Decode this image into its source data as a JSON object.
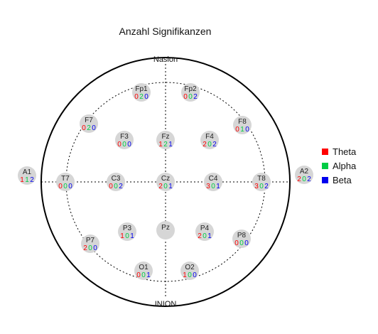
{
  "title": "Anzahl Signifikanzen",
  "labels": {
    "top": "Nasion",
    "bottom": "INION"
  },
  "legend": [
    {
      "name": "Theta",
      "color": "#ff0000"
    },
    {
      "name": "Alpha",
      "color": "#00cc44"
    },
    {
      "name": "Beta",
      "color": "#0000ee"
    }
  ],
  "electrodes": [
    {
      "name": "Fp1",
      "counts": [
        0,
        2,
        0
      ]
    },
    {
      "name": "Fp2",
      "counts": [
        0,
        0,
        2
      ]
    },
    {
      "name": "F7",
      "counts": [
        0,
        2,
        0
      ]
    },
    {
      "name": "F3",
      "counts": [
        0,
        0,
        0
      ]
    },
    {
      "name": "Fz",
      "counts": [
        1,
        2,
        1
      ]
    },
    {
      "name": "F4",
      "counts": [
        2,
        0,
        2
      ]
    },
    {
      "name": "F8",
      "counts": [
        0,
        1,
        0
      ]
    },
    {
      "name": "A1",
      "counts": [
        1,
        1,
        2
      ]
    },
    {
      "name": "T7",
      "counts": [
        0,
        0,
        0
      ]
    },
    {
      "name": "C3",
      "counts": [
        0,
        0,
        2
      ]
    },
    {
      "name": "Cz",
      "counts": [
        2,
        0,
        1
      ]
    },
    {
      "name": "C4",
      "counts": [
        3,
        0,
        1
      ]
    },
    {
      "name": "T8",
      "counts": [
        3,
        0,
        2
      ]
    },
    {
      "name": "A2",
      "counts": [
        2,
        0,
        2
      ]
    },
    {
      "name": "P3",
      "counts": [
        1,
        0,
        1
      ]
    },
    {
      "name": "Pz",
      "counts": []
    },
    {
      "name": "P4",
      "counts": [
        2,
        0,
        1
      ]
    },
    {
      "name": "P7",
      "counts": [
        2,
        0,
        0
      ]
    },
    {
      "name": "P8",
      "counts": [
        0,
        0,
        0
      ]
    },
    {
      "name": "O1",
      "counts": [
        0,
        0,
        1
      ]
    },
    {
      "name": "O2",
      "counts": [
        1,
        0,
        0
      ]
    }
  ]
}
